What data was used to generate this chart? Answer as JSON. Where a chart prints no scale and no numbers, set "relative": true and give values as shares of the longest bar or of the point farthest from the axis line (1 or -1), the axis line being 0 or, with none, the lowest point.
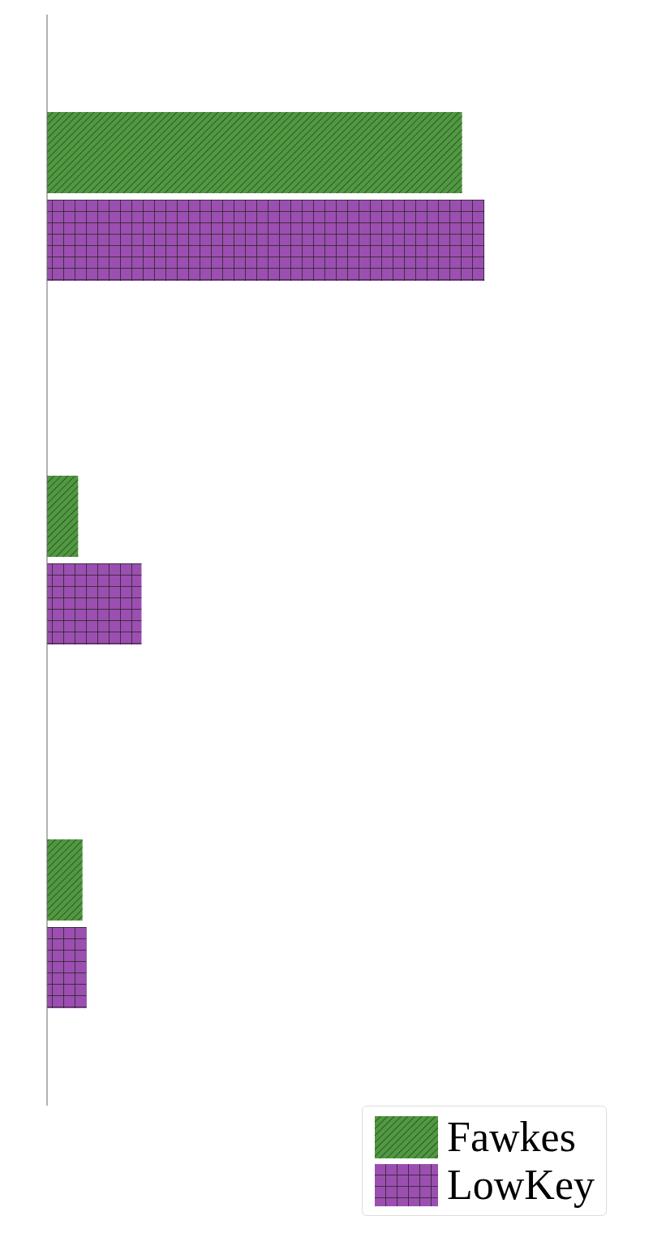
{
  "chart_data": {
    "type": "bar",
    "orientation": "horizontal",
    "relative": true,
    "categories": [
      null,
      null,
      null
    ],
    "series": [
      {
        "name": "Fawkes",
        "color": "#4f9a3f",
        "values": [
          0.949,
          0.071,
          0.081
        ]
      },
      {
        "name": "LowKey",
        "color": "#9b4fb0",
        "values": [
          1,
          0.216,
          0.09
        ]
      }
    ],
    "legend": "bottom right"
  }
}
